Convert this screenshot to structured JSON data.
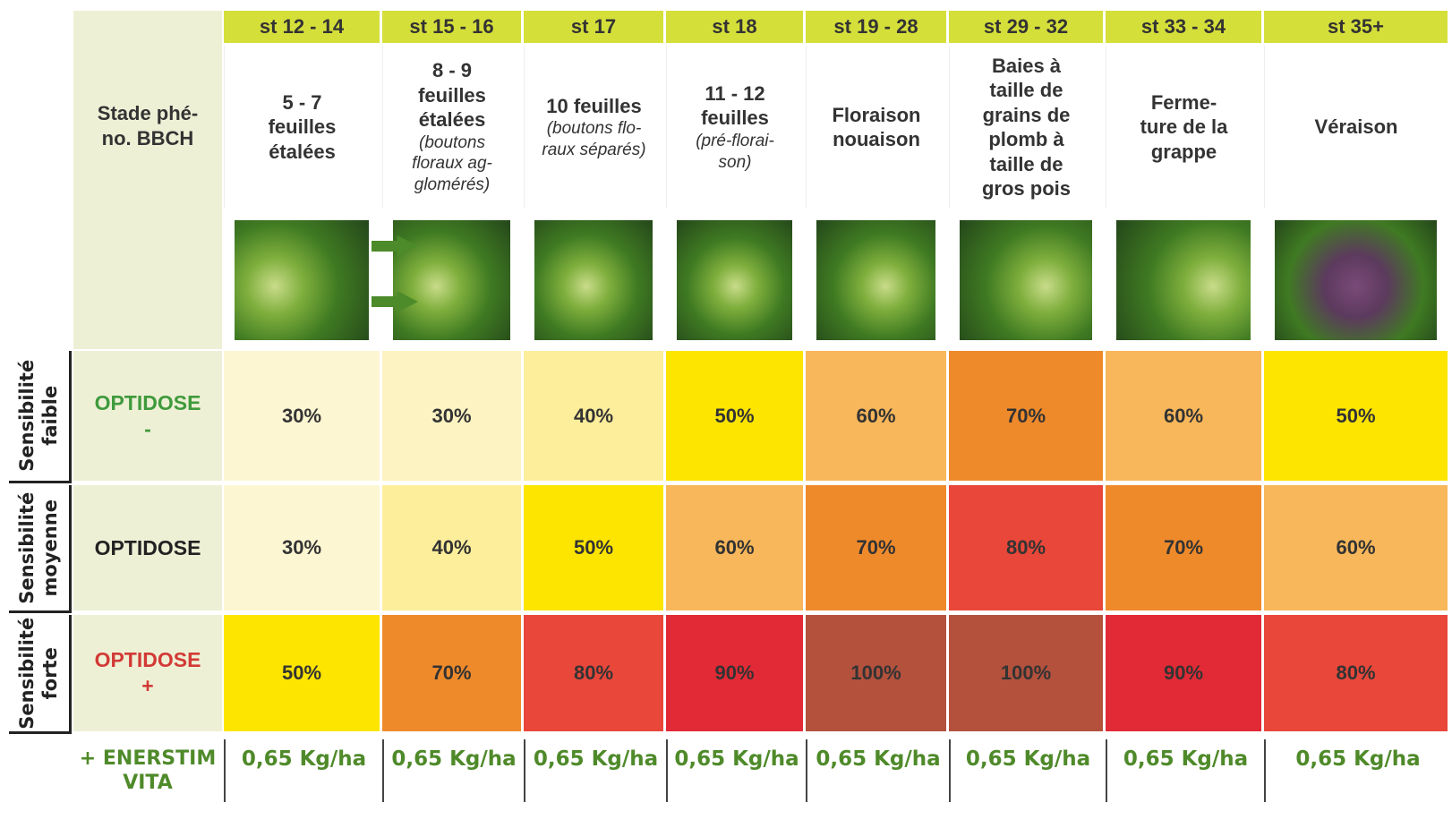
{
  "header_label": [
    "Stade phé-",
    "no. BBCH"
  ],
  "stages": [
    {
      "code": "st 12 - 14",
      "label": [
        "5 - 7",
        "feuilles",
        "étalées"
      ]
    },
    {
      "code": "st 15 - 16",
      "label": [
        "8 - 9",
        "feuilles",
        "étalées"
      ],
      "note": [
        "(boutons",
        "floraux ag-",
        "glomérés)"
      ]
    },
    {
      "code": "st 17",
      "label": [
        "10 feuilles"
      ],
      "note": [
        "(boutons flo-",
        "raux séparés)"
      ]
    },
    {
      "code": "st 18",
      "label": [
        "11 - 12",
        "feuilles"
      ],
      "note": [
        "(pré-florai-",
        "son)"
      ]
    },
    {
      "code": "st 19 - 28",
      "label": [
        "Floraison",
        "nouaison"
      ]
    },
    {
      "code": "st 29 - 32",
      "label": [
        "Baies à",
        "taille de",
        "grains de",
        "plomb à",
        "taille de",
        "gros pois"
      ]
    },
    {
      "code": "st 33 - 34",
      "label": [
        "Ferme-",
        "ture de la",
        "grappe"
      ]
    },
    {
      "code": "st 35+",
      "label": [
        "Véraison"
      ]
    }
  ],
  "rows": [
    {
      "sensitivity": [
        "Sensibilité",
        "faible"
      ],
      "dose": [
        "OPTIDOSE",
        "-"
      ],
      "dose_color": "#3f9a3c",
      "cells": [
        {
          "text": "30%",
          "color": "#fdf6d2"
        },
        {
          "text": "30%",
          "color": "#fdf3c2"
        },
        {
          "text": "40%",
          "color": "#fdee9c"
        },
        {
          "text": "50%",
          "color": "#fde500"
        },
        {
          "text": "60%",
          "color": "#f8b75a"
        },
        {
          "text": "70%",
          "color": "#ef8a2b"
        },
        {
          "text": "60%",
          "color": "#f8b75a"
        },
        {
          "text": "50%",
          "color": "#fde500"
        }
      ]
    },
    {
      "sensitivity": [
        "Sensibilité",
        "moyenne"
      ],
      "dose": [
        "OPTIDOSE"
      ],
      "dose_color": "#222222",
      "cells": [
        {
          "text": "30%",
          "color": "#fdf6d2"
        },
        {
          "text": "40%",
          "color": "#fdee9c"
        },
        {
          "text": "50%",
          "color": "#fde500"
        },
        {
          "text": "60%",
          "color": "#f8b75a"
        },
        {
          "text": "70%",
          "color": "#ef8a2b"
        },
        {
          "text": "80%",
          "color": "#e8473a"
        },
        {
          "text": "70%",
          "color": "#ef8a2b"
        },
        {
          "text": "60%",
          "color": "#f8b75a"
        }
      ]
    },
    {
      "sensitivity": [
        "Sensibilité",
        "forte"
      ],
      "dose": [
        "OPTIDOSE",
        "+"
      ],
      "dose_color": "#d23a36",
      "cells": [
        {
          "text": "50%",
          "color": "#fde500"
        },
        {
          "text": "70%",
          "color": "#ef8a2b"
        },
        {
          "text": "80%",
          "color": "#e8473a"
        },
        {
          "text": "90%",
          "color": "#e12a35"
        },
        {
          "text": "100%",
          "color": "#b3513d"
        },
        {
          "text": "100%",
          "color": "#b3513d"
        },
        {
          "text": "90%",
          "color": "#e12a35"
        },
        {
          "text": "80%",
          "color": "#e8473a"
        }
      ]
    }
  ],
  "enerstim": {
    "label": [
      "+ ENERSTIM",
      "VITA"
    ],
    "values": [
      "0,65 Kg/ha",
      "0,65 Kg/ha",
      "0,65 Kg/ha",
      "0,65 Kg/ha",
      "0,65 Kg/ha",
      "0,65 Kg/ha",
      "0,65 Kg/ha",
      "0,65 Kg/ha"
    ]
  }
}
